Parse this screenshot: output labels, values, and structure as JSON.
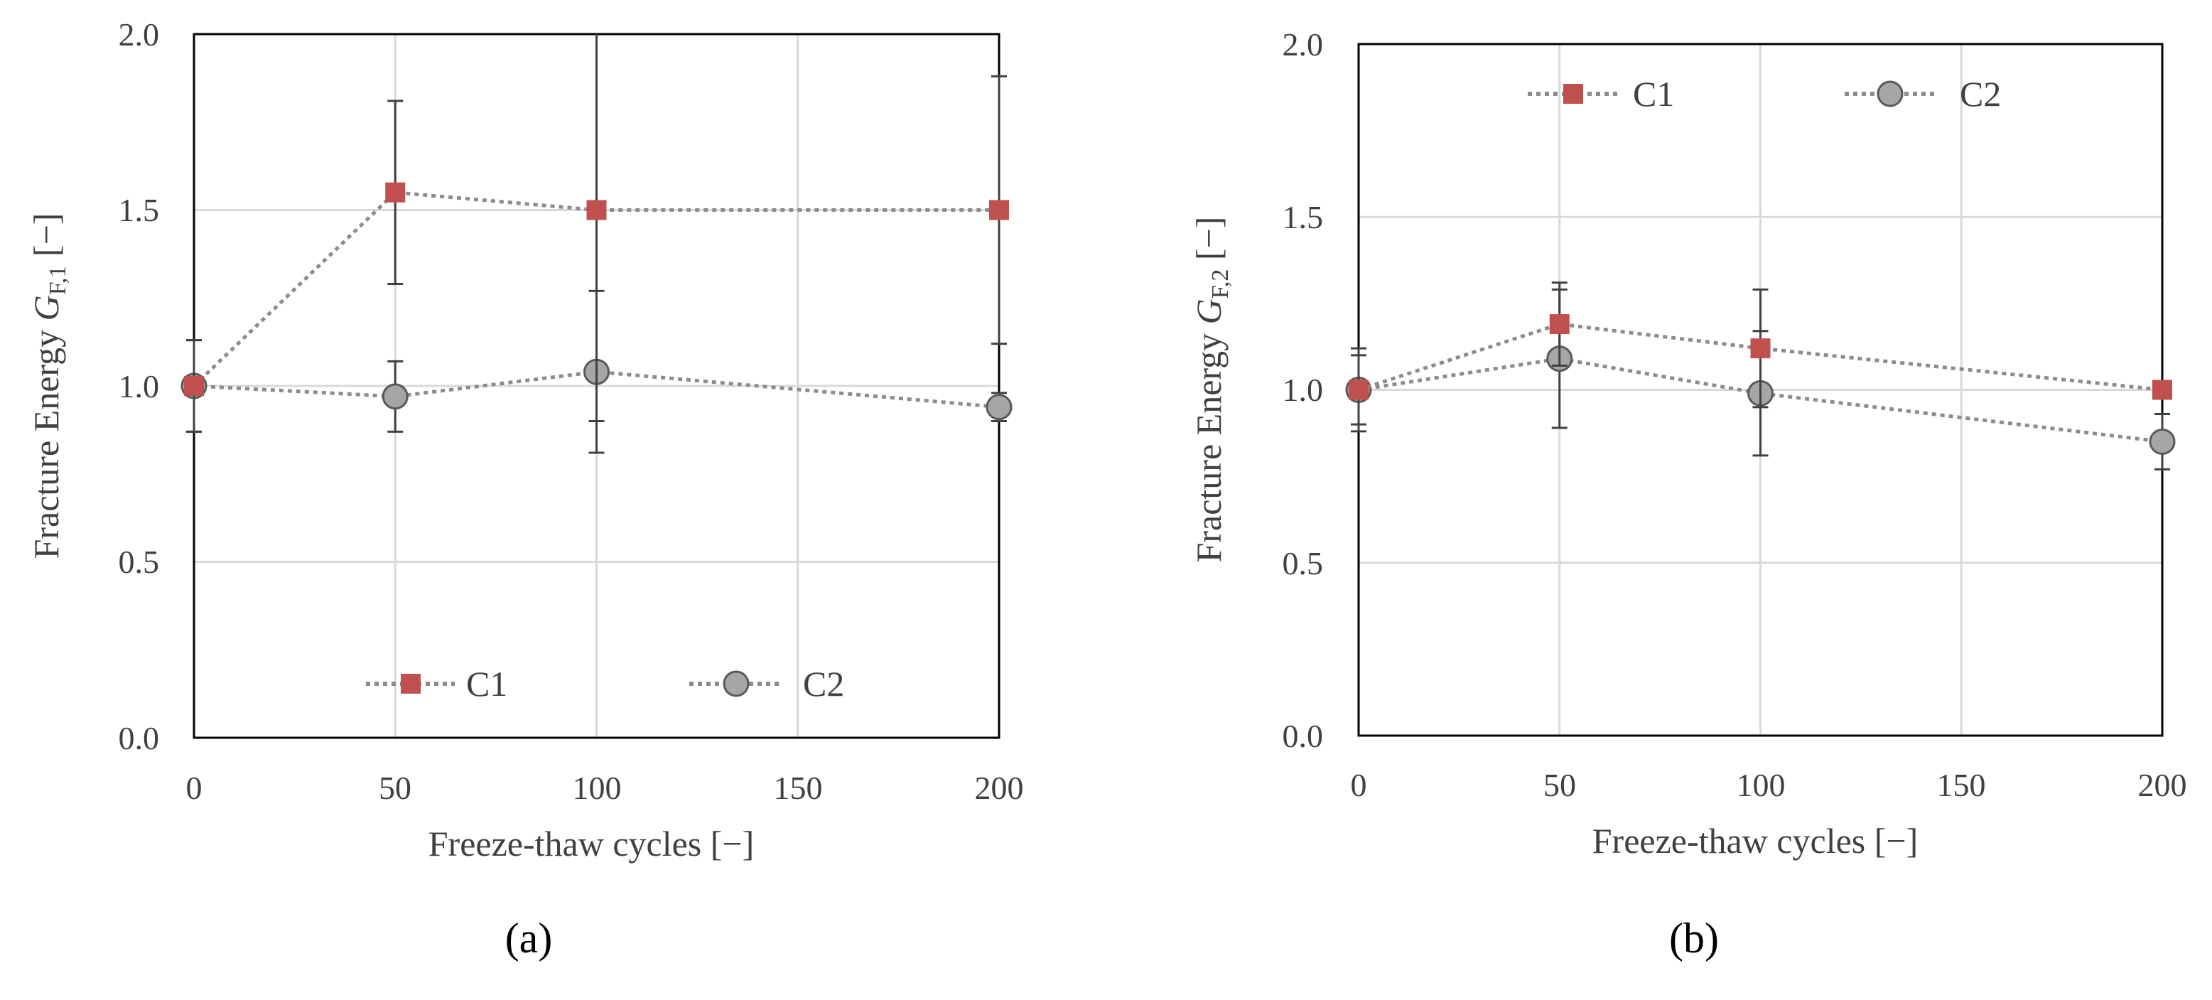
{
  "chart_data": [
    {
      "type": "line",
      "panel": "a",
      "panel_label": "(a)",
      "xlabel": "Freeze-thaw cycles [−]",
      "ylabel_main": "Fracture Energy ",
      "ylabel_var": "G",
      "ylabel_sub": "F,1",
      "ylabel_tail": " [−]",
      "x_categories": [
        0,
        50,
        100,
        150,
        200
      ],
      "x_category_labels": [
        "0",
        "50",
        "100",
        "150",
        "200"
      ],
      "ylim": [
        0,
        2
      ],
      "y_ticks": [
        0.0,
        0.5,
        1.0,
        1.5,
        2.0
      ],
      "y_tick_labels": [
        "0.0",
        "0.5",
        "1.0",
        "1.5",
        "2.0"
      ],
      "grid": true,
      "legend_position": "bottom-center",
      "series": [
        {
          "name": "C1",
          "marker": "square",
          "color": "#c0504d",
          "x": [
            0,
            50,
            100,
            200
          ],
          "y": [
            1.0,
            1.55,
            1.5,
            1.5
          ],
          "err_low": [
            0.13,
            0.26,
            0.6,
            0.38
          ],
          "err_high": [
            0.13,
            0.26,
            0.6,
            0.38
          ]
        },
        {
          "name": "C2",
          "marker": "circle",
          "color": "#a6a6a6",
          "x": [
            0,
            50,
            100,
            200
          ],
          "y": [
            1.0,
            0.97,
            1.04,
            0.94
          ],
          "err_low": [
            0.13,
            0.1,
            0.23,
            0.04
          ],
          "err_high": [
            0.13,
            0.1,
            0.23,
            0.04
          ]
        }
      ]
    },
    {
      "type": "line",
      "panel": "b",
      "panel_label": "(b)",
      "xlabel": "Freeze-thaw cycles [−]",
      "ylabel_main": "Fracture Energy ",
      "ylabel_var": "G",
      "ylabel_sub": "F,2",
      "ylabel_tail": " [−]",
      "x_categories": [
        0,
        50,
        100,
        150,
        200
      ],
      "x_category_labels": [
        "0",
        "50",
        "100",
        "150",
        "200"
      ],
      "ylim": [
        0,
        2
      ],
      "y_ticks": [
        0.0,
        0.5,
        1.0,
        1.5,
        2.0
      ],
      "y_tick_labels": [
        "0.0",
        "0.5",
        "1.0",
        "1.5",
        "2.0"
      ],
      "grid": true,
      "legend_position": "top-center",
      "series": [
        {
          "name": "C1",
          "marker": "square",
          "color": "#c0504d",
          "x": [
            0,
            50,
            100,
            200
          ],
          "y": [
            1.0,
            1.19,
            1.12,
            1.0
          ],
          "err_low": [
            0.1,
            0.12,
            0.17,
            0.01
          ],
          "err_high": [
            0.1,
            0.12,
            0.17,
            0.01
          ]
        },
        {
          "name": "C2",
          "marker": "circle",
          "color": "#a6a6a6",
          "x": [
            0,
            50,
            100,
            200
          ],
          "y": [
            1.0,
            1.09,
            0.99,
            0.85
          ],
          "err_low": [
            0.12,
            0.2,
            0.18,
            0.08
          ],
          "err_high": [
            0.12,
            0.2,
            0.18,
            0.08
          ]
        }
      ]
    }
  ]
}
